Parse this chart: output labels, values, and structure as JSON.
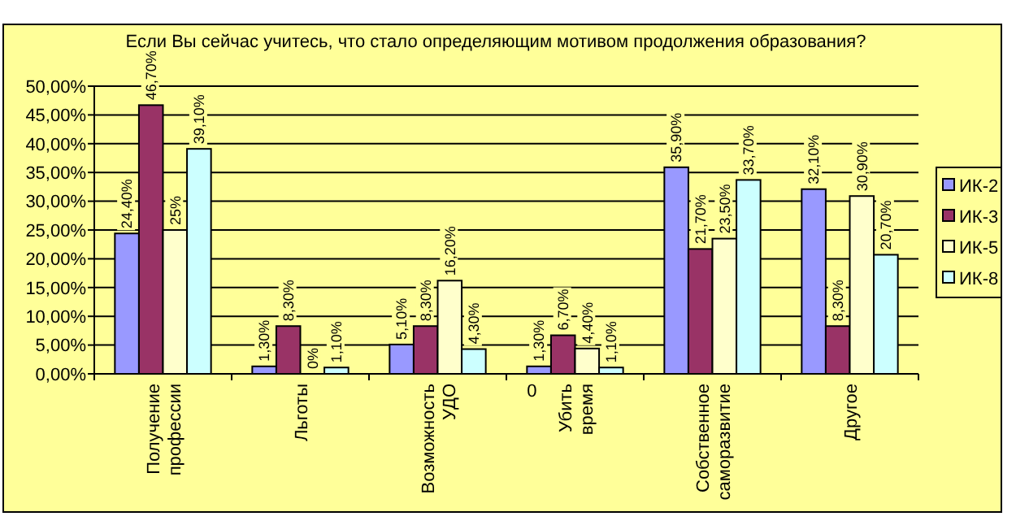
{
  "chart_data": {
    "type": "bar",
    "title": "Если Вы сейчас учитесь, что стало определяющим мотивом продолжения образования?",
    "categories": [
      "Получение профессии",
      "Льготы",
      "Возможность УДО",
      "Убить время",
      "Собственное саморазвитие",
      "Другое"
    ],
    "series": [
      {
        "name": "ИК-2",
        "color": "#9999ff",
        "values": [
          24.4,
          1.3,
          5.1,
          1.3,
          35.9,
          32.1
        ],
        "value_labels": [
          "24,40%",
          "1,30%",
          "5,10%",
          "1,30%",
          "35,90%",
          "32,10%"
        ]
      },
      {
        "name": "ИК-3",
        "color": "#993366",
        "values": [
          46.7,
          8.3,
          8.3,
          6.7,
          21.7,
          8.3
        ],
        "value_labels": [
          "46,70%",
          "8,30%",
          "8,30%",
          "6,70%",
          "21,70%",
          "8,30%"
        ]
      },
      {
        "name": "ИК-5",
        "color": "#ffffcc",
        "values": [
          25,
          0,
          16.2,
          4.4,
          23.5,
          30.9
        ],
        "value_labels": [
          "25%",
          "0%",
          "16,20%",
          "4,40%",
          "23,50%",
          "30,90%"
        ]
      },
      {
        "name": "ИК-8",
        "color": "#ccffff",
        "values": [
          39.1,
          1.1,
          4.3,
          1.1,
          33.7,
          20.7
        ],
        "value_labels": [
          "39,10%",
          "1,10%",
          "4,30%",
          "1,10%",
          "33,70%",
          "20,70%"
        ]
      }
    ],
    "ylim": [
      0,
      50
    ],
    "yticks": [
      {
        "value": 0,
        "label": "0,00%"
      },
      {
        "value": 5,
        "label": "5,00%"
      },
      {
        "value": 10,
        "label": "10,00%"
      },
      {
        "value": 15,
        "label": "15,00%"
      },
      {
        "value": 20,
        "label": "20,00%"
      },
      {
        "value": 25,
        "label": "25,00%"
      },
      {
        "value": 30,
        "label": "30,00%"
      },
      {
        "value": 35,
        "label": "35,00%"
      },
      {
        "value": 40,
        "label": "40,00%"
      },
      {
        "value": 45,
        "label": "45,00%"
      },
      {
        "value": 50,
        "label": "50,00%"
      }
    ],
    "grid": "y",
    "legend": "right",
    "annotations": [
      {
        "text": "0",
        "x": "Убить время",
        "y": 0
      }
    ]
  }
}
